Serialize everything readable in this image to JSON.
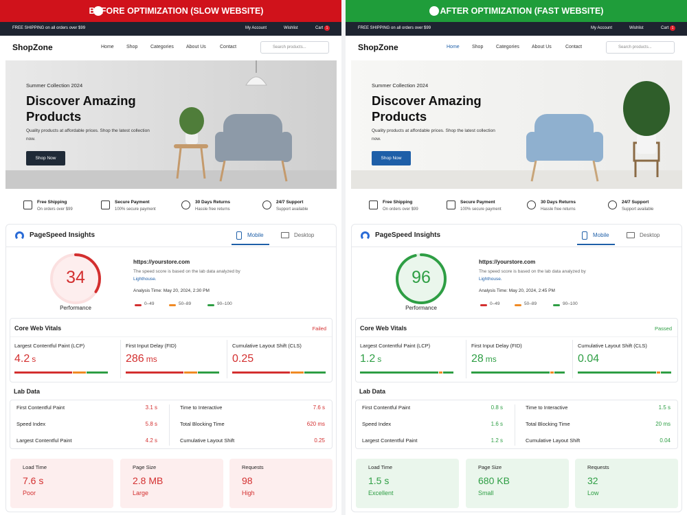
{
  "panels": [
    {
      "banner": "BEFORE OPTIMIZATION (SLOW WEBSITE)",
      "color": "#d32f2f",
      "banner_color": "#d0121b",
      "tint": "#fdeeee",
      "topbar": {
        "shipping": "FREE SHIPPING on all orders over $99",
        "account": "My Account",
        "wishlist": "Wishlist",
        "cart": "Cart",
        "cart_count": 1
      },
      "nav": {
        "logo": "ShopZone",
        "links": [
          "Home",
          "Shop",
          "Categories",
          "About Us",
          "Contact"
        ],
        "search": "Search products..."
      },
      "hero": {
        "eyebrow": "Summer Collection 2024",
        "title": "Discover Amazing Products",
        "text": "Quality products at affordable prices. Shop the latest collection now.",
        "button": "Shop Now"
      },
      "features": [
        {
          "title": "Free Shipping",
          "text": "On orders over $99"
        },
        {
          "title": "Secure Payment",
          "text": "100% secure payment"
        },
        {
          "title": "30 Days Returns",
          "text": "Hassle free returns"
        },
        {
          "title": "24/7 Support",
          "text": "Support available"
        }
      ],
      "psi": {
        "title": "PageSpeed Insights",
        "tabs": [
          "Mobile",
          "Desktop"
        ],
        "score": 34,
        "score_lim": [
          0,
          100
        ],
        "score_label": "Performance",
        "url": "https://yourstore.com",
        "note": "The speed score is based on the lab data analyzed by",
        "link": "Lighthouse.",
        "time": "Analysis Time: May 20, 2024, 2:30 PM",
        "legend": [
          "0–49",
          "50–89",
          "90–100"
        ]
      },
      "cwv": {
        "title": "Core Web Vitals",
        "status": "Failed",
        "metrics": [
          {
            "name": "Largest Contentful Paint (LCP)",
            "value": "4.2",
            "unit": "s"
          },
          {
            "name": "First Input Delay (FID)",
            "value": "286",
            "unit": "ms"
          },
          {
            "name": "Cumulative Layout Shift (CLS)",
            "value": "0.25"
          }
        ]
      },
      "lab": {
        "title": "Lab Data",
        "rows": [
          {
            "name": "First Contentful Paint",
            "value": "3.1 s"
          },
          {
            "name": "Speed Index",
            "value": "5.8 s"
          },
          {
            "name": "Largest Contentful Paint",
            "value": "4.2 s"
          },
          {
            "name": "Time to Interactive",
            "value": "7.6 s"
          },
          {
            "name": "Total Blocking Time",
            "value": "620 ms"
          },
          {
            "name": "Cumulative Layout Shift",
            "value": "0.25"
          }
        ]
      },
      "summary": [
        {
          "label": "Load Time",
          "value": "7.6 s",
          "rating": "Poor"
        },
        {
          "label": "Page Size",
          "value": "2.8 MB",
          "rating": "Large"
        },
        {
          "label": "Requests",
          "value": "98",
          "rating": "High"
        }
      ]
    },
    {
      "banner": "AFTER OPTIMIZATION (FAST WEBSITE)",
      "color": "#2e9e44",
      "banner_color": "#1f9d3a",
      "tint": "#eaf6ec",
      "topbar": {
        "shipping": "FREE SHIPPING on all orders over $99",
        "account": "My Account",
        "wishlist": "Wishlist",
        "cart": "Cart",
        "cart_count": 1
      },
      "nav": {
        "logo": "ShopZone",
        "links": [
          "Home",
          "Shop",
          "Categories",
          "About Us",
          "Contact"
        ],
        "search": "Search products..."
      },
      "hero": {
        "eyebrow": "Summer Collection 2024",
        "title": "Discover Amazing Products",
        "text": "Quality products at affordable prices. Shop the latest collection now.",
        "button": "Shop Now"
      },
      "features": [
        {
          "title": "Free Shipping",
          "text": "On orders over $99"
        },
        {
          "title": "Secure Payment",
          "text": "100% secure payment"
        },
        {
          "title": "30 Days Returns",
          "text": "Hassle free returns"
        },
        {
          "title": "24/7 Support",
          "text": "Support available"
        }
      ],
      "psi": {
        "title": "PageSpeed Insights",
        "tabs": [
          "Mobile",
          "Desktop"
        ],
        "score": 96,
        "score_lim": [
          0,
          100
        ],
        "score_label": "Performance",
        "url": "https://yourstore.com",
        "note": "The speed score is based on the lab data analyzed by",
        "link": "Lighthouse.",
        "time": "Analysis Time: May 20, 2024, 2:45 PM",
        "legend": [
          "0–49",
          "50–89",
          "90–100"
        ]
      },
      "cwv": {
        "title": "Core Web Vitals",
        "status": "Passed",
        "metrics": [
          {
            "name": "Largest Contentful Paint (LCP)",
            "value": "1.2",
            "unit": "s"
          },
          {
            "name": "First Input Delay (FID)",
            "value": "28",
            "unit": "ms"
          },
          {
            "name": "Cumulative Layout Shift (CLS)",
            "value": "0.04"
          }
        ]
      },
      "lab": {
        "title": "Lab Data",
        "rows": [
          {
            "name": "First Contentful Paint",
            "value": "0.8 s"
          },
          {
            "name": "Speed Index",
            "value": "1.6 s"
          },
          {
            "name": "Largest Contentful Paint",
            "value": "1.2 s"
          },
          {
            "name": "Time to Interactive",
            "value": "1.5 s"
          },
          {
            "name": "Total Blocking Time",
            "value": "20 ms"
          },
          {
            "name": "Cumulative Layout Shift",
            "value": "0.04"
          }
        ]
      },
      "summary": [
        {
          "label": "Load Time",
          "value": "1.5 s",
          "rating": "Excellent"
        },
        {
          "label": "Page Size",
          "value": "680 KB",
          "rating": "Small"
        },
        {
          "label": "Requests",
          "value": "32",
          "rating": "Low"
        }
      ]
    }
  ]
}
